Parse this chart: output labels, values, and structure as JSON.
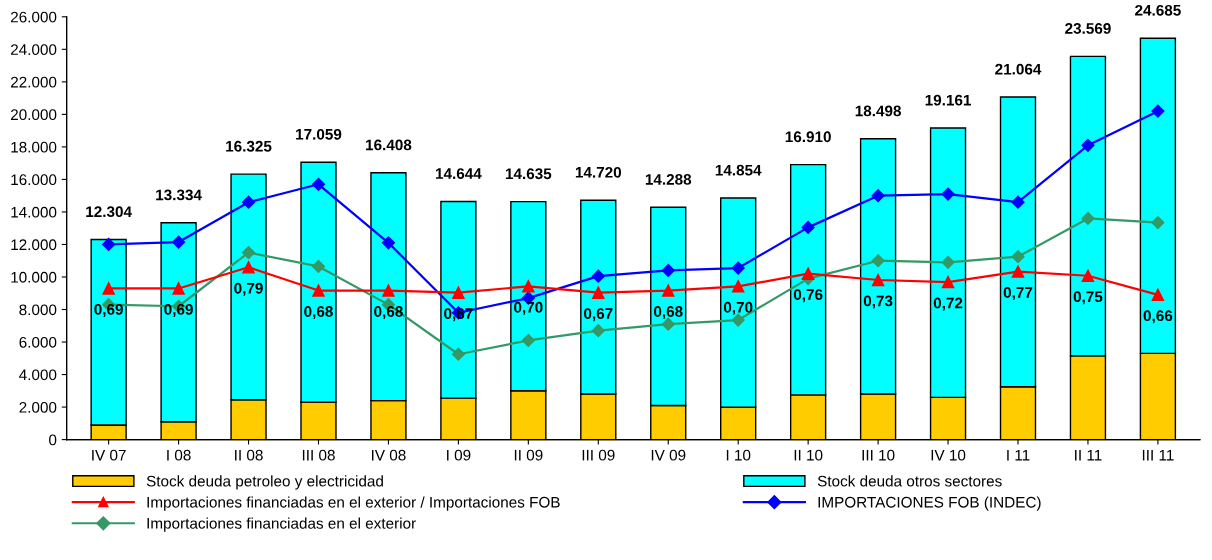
{
  "chart_data": {
    "type": "bar",
    "stacked": true,
    "categories": [
      "IV 07",
      "I 08",
      "II 08",
      "III 08",
      "IV 08",
      "I 09",
      "II 09",
      "III 09",
      "IV 09",
      "I 10",
      "II 10",
      "III 10",
      "IV 10",
      "I 11",
      "II 11",
      "III 11"
    ],
    "series": [
      {
        "name": "Stock deuda petroleo y electricidad",
        "color": "#ffcc00",
        "values": [
          900,
          1100,
          2450,
          2300,
          2400,
          2550,
          3000,
          2800,
          2100,
          2000,
          2750,
          2800,
          2600,
          3250,
          5150,
          5300
        ]
      },
      {
        "name": "Stock deuda otros sectores",
        "color": "#00ffff",
        "values": [
          11404,
          12234,
          13875,
          14759,
          14008,
          12094,
          11635,
          11920,
          12188,
          12854,
          14160,
          15698,
          16561,
          17814,
          18419,
          19385
        ]
      },
      {
        "name": "Importaciones financiadas en el exterior / Importaciones FOB",
        "type": "line",
        "axis": "y2",
        "marker": "triangle",
        "color": "#ff0000",
        "values": [
          0.69,
          0.69,
          0.79,
          0.68,
          0.68,
          0.67,
          0.7,
          0.67,
          0.68,
          0.7,
          0.76,
          0.73,
          0.72,
          0.77,
          0.75,
          0.66
        ],
        "value_labels": [
          "0,69",
          "0,69",
          "0,79",
          "0,68",
          "0,68",
          "0,67",
          "0,70",
          "0,67",
          "0,68",
          "0,70",
          "0,76",
          "0,73",
          "0,72",
          "0,77",
          "0,75",
          "0,66"
        ]
      },
      {
        "name": "IMPORTACIONES FOB (INDEC)",
        "type": "line",
        "marker": "diamond",
        "color": "#0000ff",
        "values": [
          12000,
          12150,
          14600,
          15700,
          12100,
          7800,
          8700,
          10050,
          10400,
          10550,
          13050,
          15000,
          15100,
          14600,
          18100,
          20200
        ]
      },
      {
        "name": "Importaciones financiadas en el exterior",
        "type": "line",
        "marker": "diamond",
        "color": "#339966",
        "values": [
          8300,
          8200,
          11500,
          10650,
          8300,
          5250,
          6100,
          6700,
          7100,
          7350,
          9900,
          11000,
          10900,
          11250,
          13600,
          13350
        ]
      }
    ],
    "totals": [
      "12.304",
      "13.334",
      "16.325",
      "17.059",
      "16.408",
      "14.644",
      "14.635",
      "14.720",
      "14.288",
      "14.854",
      "16.910",
      "18.498",
      "19.161",
      "21.064",
      "23.569",
      "24.685"
    ],
    "ylim": [
      0,
      26000
    ],
    "yticks": [
      {
        "value": 0,
        "label": "0"
      },
      {
        "value": 2000,
        "label": "2.000"
      },
      {
        "value": 4000,
        "label": "4.000"
      },
      {
        "value": 6000,
        "label": "6.000"
      },
      {
        "value": 8000,
        "label": "8.000"
      },
      {
        "value": 10000,
        "label": "10.000"
      },
      {
        "value": 12000,
        "label": "12.000"
      },
      {
        "value": 14000,
        "label": "14.000"
      },
      {
        "value": 16000,
        "label": "16.000"
      },
      {
        "value": 18000,
        "label": "18.000"
      },
      {
        "value": 20000,
        "label": "20.000"
      },
      {
        "value": 22000,
        "label": "22.000"
      },
      {
        "value": 24000,
        "label": "24.000"
      },
      {
        "value": 26000,
        "label": "26.000"
      }
    ],
    "y2lim": [
      -0.025,
      1.975
    ],
    "grid": false,
    "legend": "bottom"
  }
}
